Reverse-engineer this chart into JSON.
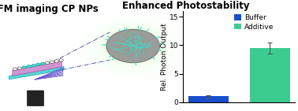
{
  "title_left": "TIRFM imaging CP NPs",
  "title_right": "Enhanced Photostability",
  "bar_categories": [
    "Buffer",
    "Additive"
  ],
  "bar_values": [
    1.0,
    9.5
  ],
  "bar_errors": [
    0.15,
    1.0
  ],
  "bar_colors": [
    "#1a4fcc",
    "#3dcc90"
  ],
  "ylabel": "Rel. Photon Output",
  "ylim": [
    0,
    16
  ],
  "yticks": [
    0,
    5,
    10,
    15
  ],
  "legend_labels": [
    "Buffer",
    "Additive"
  ],
  "legend_colors": [
    "#1a4fcc",
    "#3dcc90"
  ],
  "background_color": "#ffffff",
  "title_fontsize": 8.5,
  "axis_fontsize": 6.5,
  "tick_fontsize": 6.5,
  "slide_color": "#50d8d8",
  "slide_edge": "#30b0b0",
  "sample_color": "#cc88cc",
  "sample_edge": "#aa55aa",
  "obj_color": "#222222",
  "beam_color": "#6655cc",
  "dash_color": "#333388",
  "np_color": "#909090",
  "np_edge": "#707070",
  "chain_color": "#40d8c8",
  "glow_colors": [
    "#ccff88",
    "#aafe66",
    "#88ee44",
    "#66dd33"
  ],
  "glow_alphas": [
    0.07,
    0.1,
    0.15,
    0.22
  ],
  "glow_radii": [
    2.0,
    1.6,
    1.2,
    0.8
  ]
}
